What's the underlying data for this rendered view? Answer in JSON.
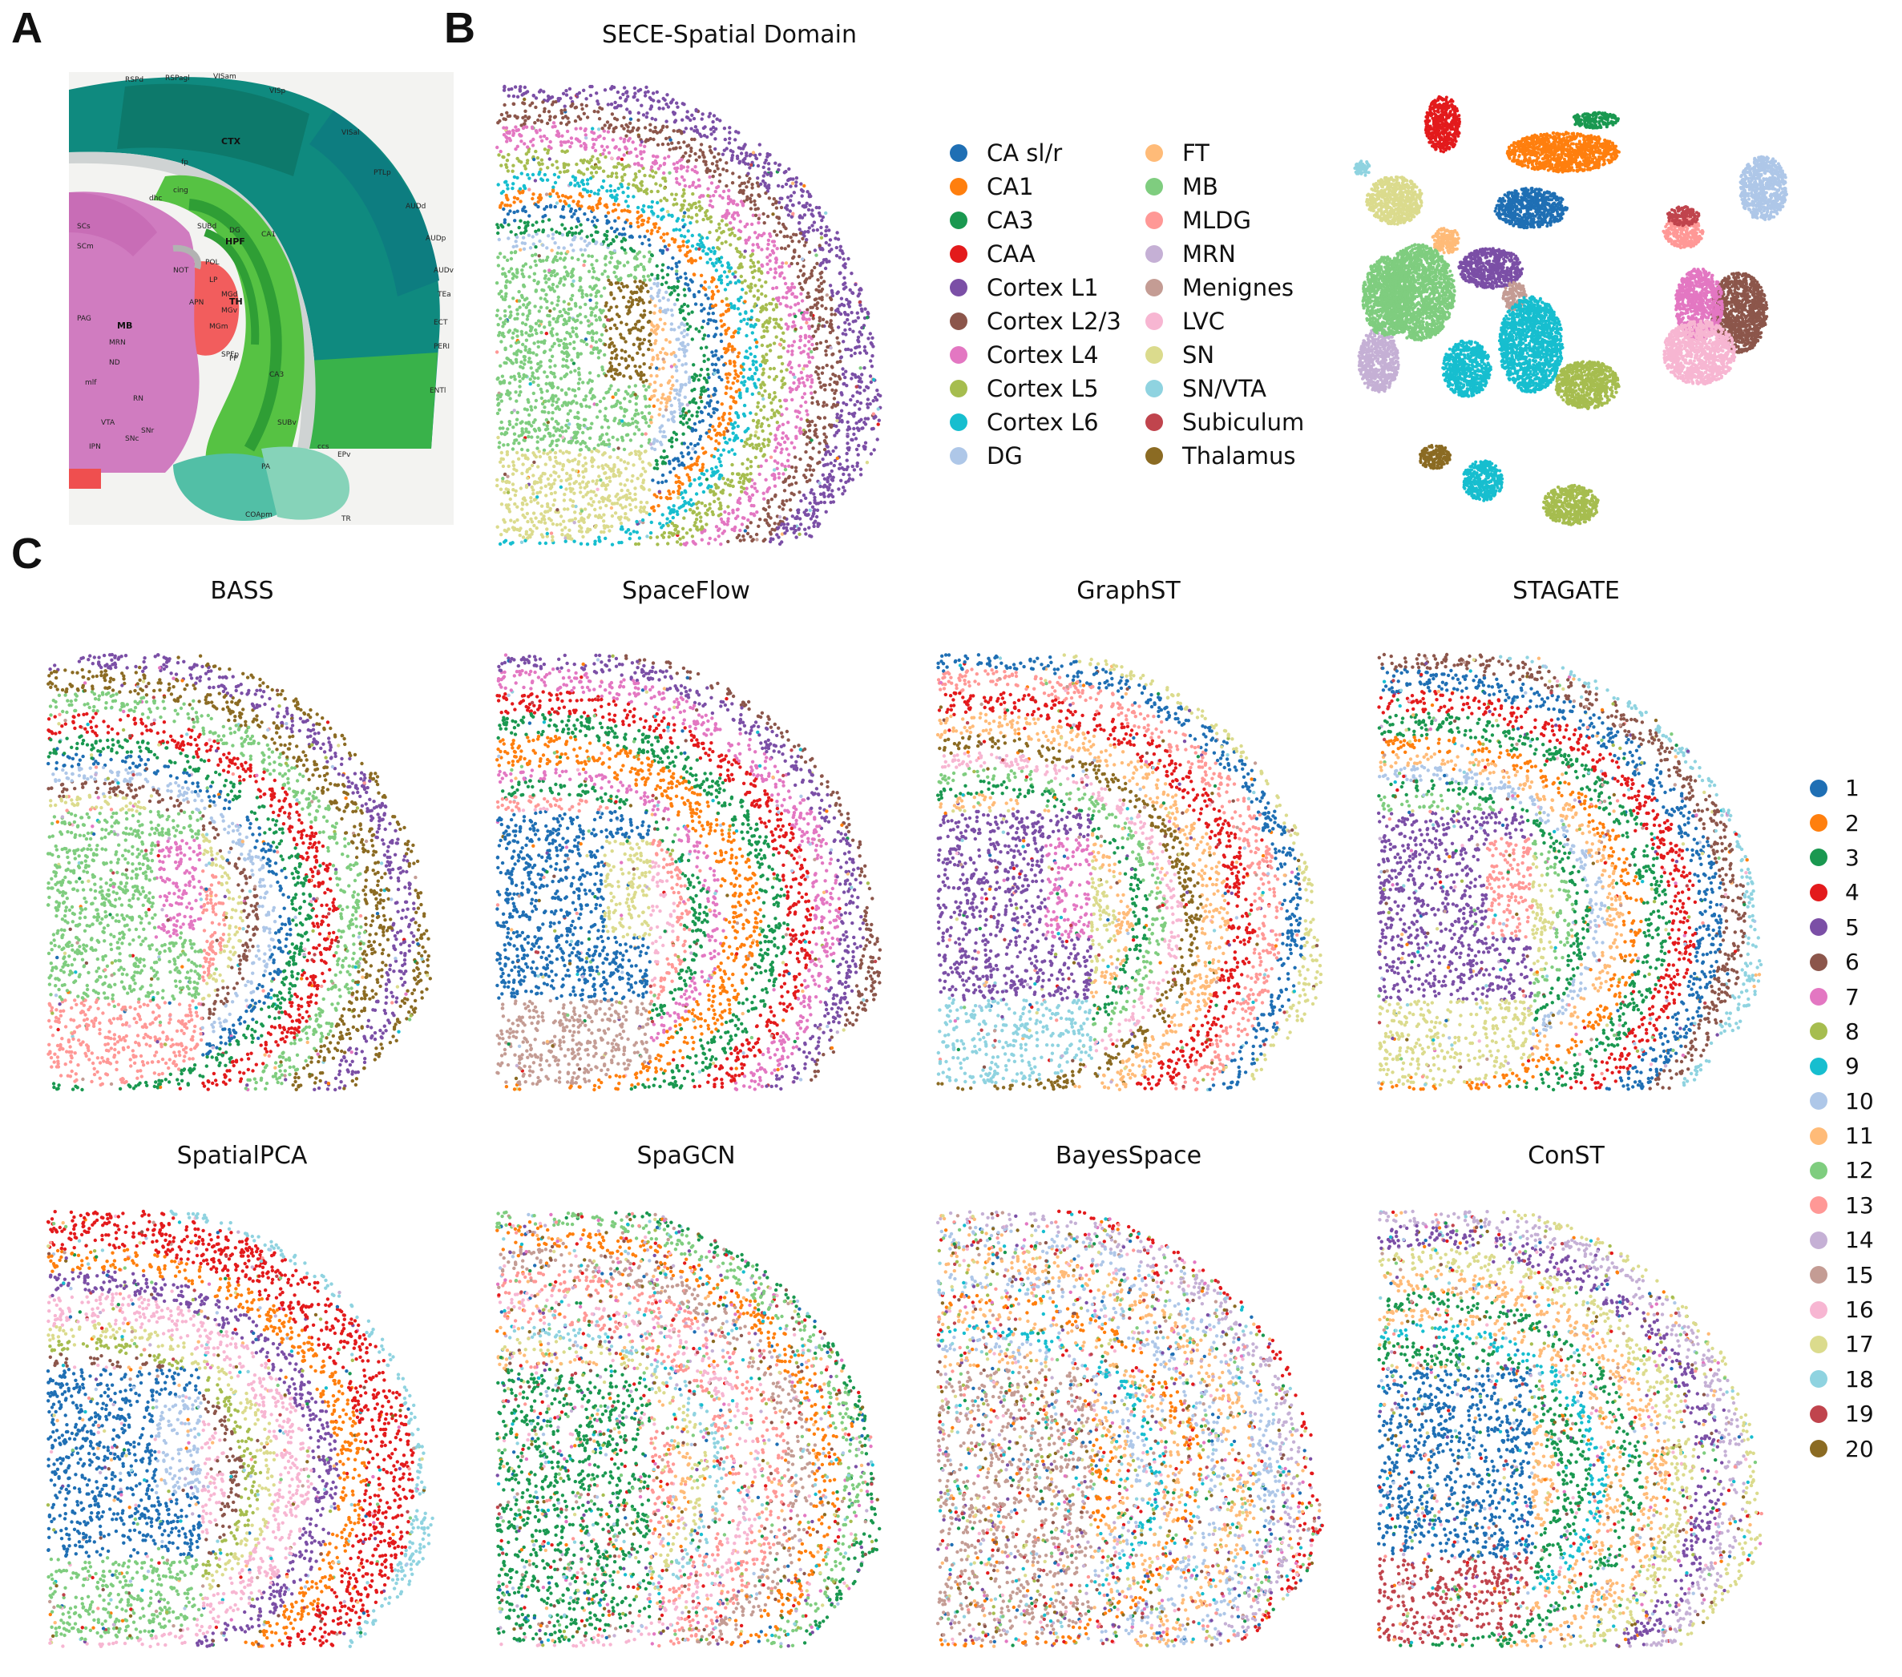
{
  "panels": {
    "a": {
      "letter": "A"
    },
    "b": {
      "letter": "B",
      "title": "SECE-Spatial Domain"
    },
    "c": {
      "letter": "C"
    }
  },
  "atlas": {
    "labels": [
      "RSPd",
      "RSPagl",
      "VISam",
      "VISp",
      "VISal",
      "PTLp",
      "AUDd",
      "AUDp",
      "AUDv",
      "TEa",
      "ECT",
      "PERI",
      "ENTl",
      "CTX",
      "HPF",
      "TH",
      "MB",
      "CA1",
      "CA3",
      "DG",
      "SUBd",
      "SUBv",
      "SCs",
      "SCm",
      "PAG",
      "MRN",
      "VTA",
      "SNr",
      "SNc",
      "RN",
      "LP",
      "MGd",
      "MGv",
      "MGm",
      "APN",
      "NOT",
      "PP",
      "SPFp",
      "PA",
      "TR",
      "COApm",
      "cing",
      "fp",
      "dhc",
      "ND",
      "IPN",
      "EPv",
      "POL",
      "ccs",
      "mlf"
    ]
  },
  "domain_legend": {
    "col1": [
      {
        "label": "CA sl/r",
        "color": "#1f6fb4"
      },
      {
        "label": "CA1",
        "color": "#ff7f0e"
      },
      {
        "label": "CA3",
        "color": "#1a9850"
      },
      {
        "label": "CAA",
        "color": "#e31a1c"
      },
      {
        "label": "Cortex L1",
        "color": "#7b4fa6"
      },
      {
        "label": "Cortex L2/3",
        "color": "#8c564b"
      },
      {
        "label": "Cortex L4",
        "color": "#e377c2"
      },
      {
        "label": "Cortex L5",
        "color": "#a6bd4f"
      },
      {
        "label": "Cortex L6",
        "color": "#17becf"
      },
      {
        "label": "DG",
        "color": "#aec7e8"
      }
    ],
    "col2": [
      {
        "label": "FT",
        "color": "#ffbb78"
      },
      {
        "label": "MB",
        "color": "#7fcd7f"
      },
      {
        "label": "MLDG",
        "color": "#ff9896"
      },
      {
        "label": "MRN",
        "color": "#c5b0d5"
      },
      {
        "label": "Menignes",
        "color": "#c49c94"
      },
      {
        "label": "LVC",
        "color": "#f7b6d2"
      },
      {
        "label": "SN",
        "color": "#dbdb8d"
      },
      {
        "label": "SN/VTA",
        "color": "#8fd3e0"
      },
      {
        "label": "Subiculum",
        "color": "#c0444d"
      },
      {
        "label": "Thalamus",
        "color": "#8b6b23"
      }
    ]
  },
  "methods": [
    "BASS",
    "SpaceFlow",
    "GraphST",
    "STAGATE",
    "SpatialPCA",
    "SpaGCN",
    "BayesSpace",
    "ConST"
  ],
  "cluster_legend": [
    {
      "label": "1",
      "color": "#1f6fb4"
    },
    {
      "label": "2",
      "color": "#ff7f0e"
    },
    {
      "label": "3",
      "color": "#1a9850"
    },
    {
      "label": "4",
      "color": "#e31a1c"
    },
    {
      "label": "5",
      "color": "#7b4fa6"
    },
    {
      "label": "6",
      "color": "#8c564b"
    },
    {
      "label": "7",
      "color": "#e377c2"
    },
    {
      "label": "8",
      "color": "#a6bd4f"
    },
    {
      "label": "9",
      "color": "#17becf"
    },
    {
      "label": "10",
      "color": "#aec7e8"
    },
    {
      "label": "11",
      "color": "#ffbb78"
    },
    {
      "label": "12",
      "color": "#7fcd7f"
    },
    {
      "label": "13",
      "color": "#ff9896"
    },
    {
      "label": "14",
      "color": "#c5b0d5"
    },
    {
      "label": "15",
      "color": "#c49c94"
    },
    {
      "label": "16",
      "color": "#f7b6d2"
    },
    {
      "label": "17",
      "color": "#dbdb8d"
    },
    {
      "label": "18",
      "color": "#8fd3e0"
    },
    {
      "label": "19",
      "color": "#c0444d"
    },
    {
      "label": "20",
      "color": "#8b6b23"
    }
  ]
}
